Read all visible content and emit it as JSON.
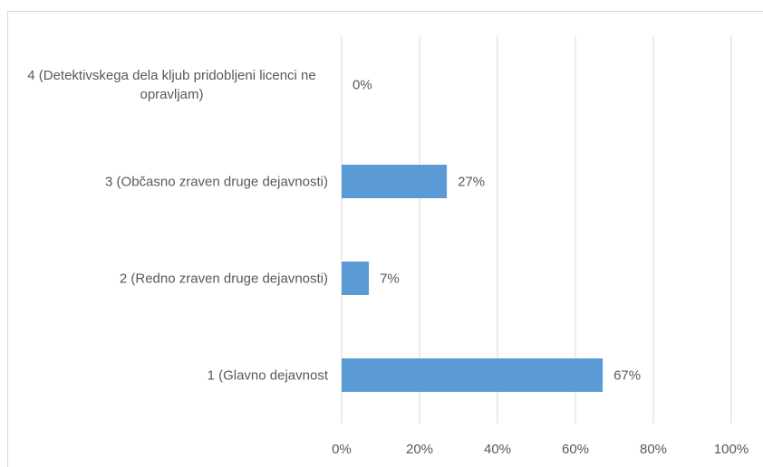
{
  "chart_data": {
    "type": "bar",
    "orientation": "horizontal",
    "categories": [
      "4 (Detektivskega dela kljub pridobljeni licenci ne opravljam)",
      "3 (Občasno zraven druge dejavnosti)",
      "2 (Redno zraven druge dejavnosti)",
      "1 (Glavno dejavnost"
    ],
    "values": [
      0,
      27,
      7,
      67
    ],
    "value_labels": [
      "0%",
      "27%",
      "7%",
      "67%"
    ],
    "color": "#5b9bd5",
    "xlim": [
      0,
      100
    ],
    "xticks": [
      {
        "value": 0,
        "label": "0%"
      },
      {
        "value": 20,
        "label": "20%"
      },
      {
        "value": 40,
        "label": "40%"
      },
      {
        "value": 60,
        "label": "60%"
      },
      {
        "value": 80,
        "label": "80%"
      },
      {
        "value": 100,
        "label": "100%"
      }
    ],
    "grid": true
  }
}
